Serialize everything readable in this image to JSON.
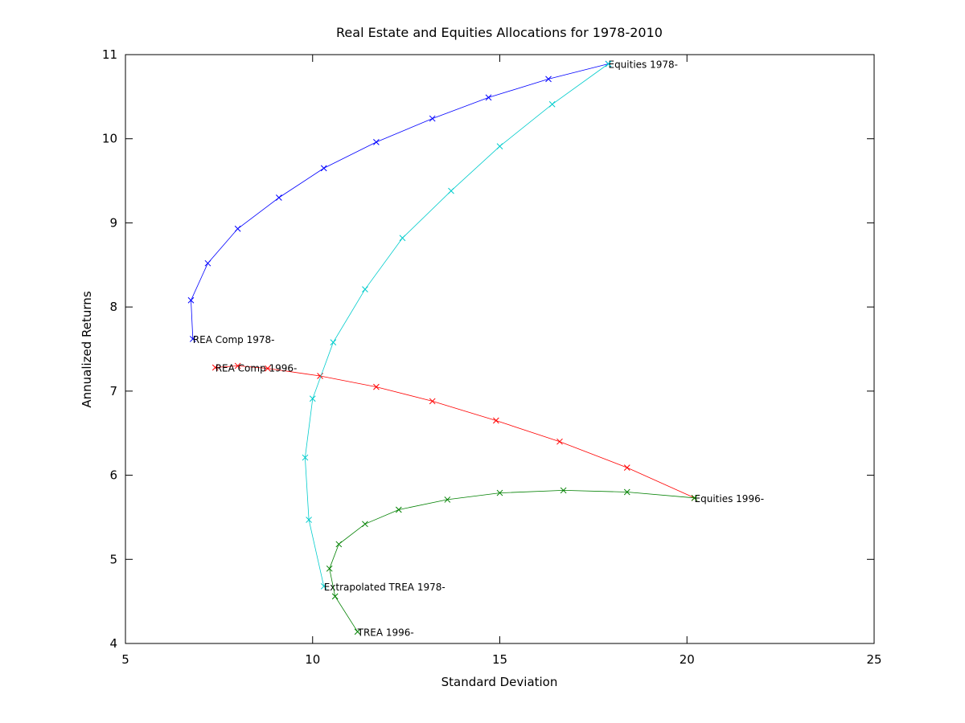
{
  "chart_data": {
    "type": "line",
    "title": "Real Estate and Equities Allocations for 1978-2010",
    "xlabel": "Standard Deviation",
    "ylabel": "Annualized Returns",
    "xlim": [
      5,
      25
    ],
    "ylim": [
      4,
      11
    ],
    "xticks": [
      5,
      10,
      15,
      20,
      25
    ],
    "yticks": [
      4,
      5,
      6,
      7,
      8,
      9,
      10,
      11
    ],
    "grid": false,
    "legend": "none",
    "marker": "x",
    "series": [
      {
        "color": "#0000ff",
        "points": [
          [
            6.8,
            7.62
          ],
          [
            6.75,
            8.08
          ],
          [
            7.2,
            8.52
          ],
          [
            8.0,
            8.93
          ],
          [
            9.1,
            9.3
          ],
          [
            10.3,
            9.65
          ],
          [
            11.7,
            9.96
          ],
          [
            13.2,
            10.24
          ],
          [
            14.7,
            10.49
          ],
          [
            16.3,
            10.71
          ],
          [
            17.9,
            10.89
          ]
        ],
        "labels": [
          {
            "index": 0,
            "text": "REA Comp 1978-"
          },
          {
            "index": 10,
            "text": "Equities 1978-"
          }
        ]
      },
      {
        "color": "#ff0000",
        "points": [
          [
            7.4,
            7.28
          ],
          [
            8.0,
            7.3
          ],
          [
            8.8,
            7.27
          ],
          [
            10.2,
            7.18
          ],
          [
            11.7,
            7.05
          ],
          [
            13.2,
            6.88
          ],
          [
            14.9,
            6.65
          ],
          [
            16.6,
            6.4
          ],
          [
            18.4,
            6.09
          ],
          [
            20.2,
            5.73
          ]
        ],
        "labels": [
          {
            "index": 0,
            "text": "REA Comp 1996-"
          },
          {
            "index": 9,
            "text": "Equities 1996-"
          }
        ]
      },
      {
        "color": "#00cccc",
        "points": [
          [
            10.3,
            4.68
          ],
          [
            9.9,
            5.47
          ],
          [
            9.8,
            6.21
          ],
          [
            10.0,
            6.91
          ],
          [
            10.55,
            7.58
          ],
          [
            11.4,
            8.21
          ],
          [
            12.4,
            8.82
          ],
          [
            13.7,
            9.38
          ],
          [
            15.0,
            9.91
          ],
          [
            16.4,
            10.41
          ],
          [
            17.9,
            10.89
          ]
        ],
        "labels": [
          {
            "index": 0,
            "text": "Extrapolated TREA 1978-"
          }
        ]
      },
      {
        "color": "#008000",
        "points": [
          [
            11.2,
            4.14
          ],
          [
            10.6,
            4.56
          ],
          [
            10.45,
            4.89
          ],
          [
            10.7,
            5.18
          ],
          [
            11.4,
            5.42
          ],
          [
            12.3,
            5.59
          ],
          [
            13.6,
            5.71
          ],
          [
            15.0,
            5.79
          ],
          [
            16.7,
            5.82
          ],
          [
            18.4,
            5.8
          ],
          [
            20.2,
            5.73
          ]
        ],
        "labels": [
          {
            "index": 0,
            "text": "TREA 1996-"
          }
        ]
      }
    ]
  }
}
